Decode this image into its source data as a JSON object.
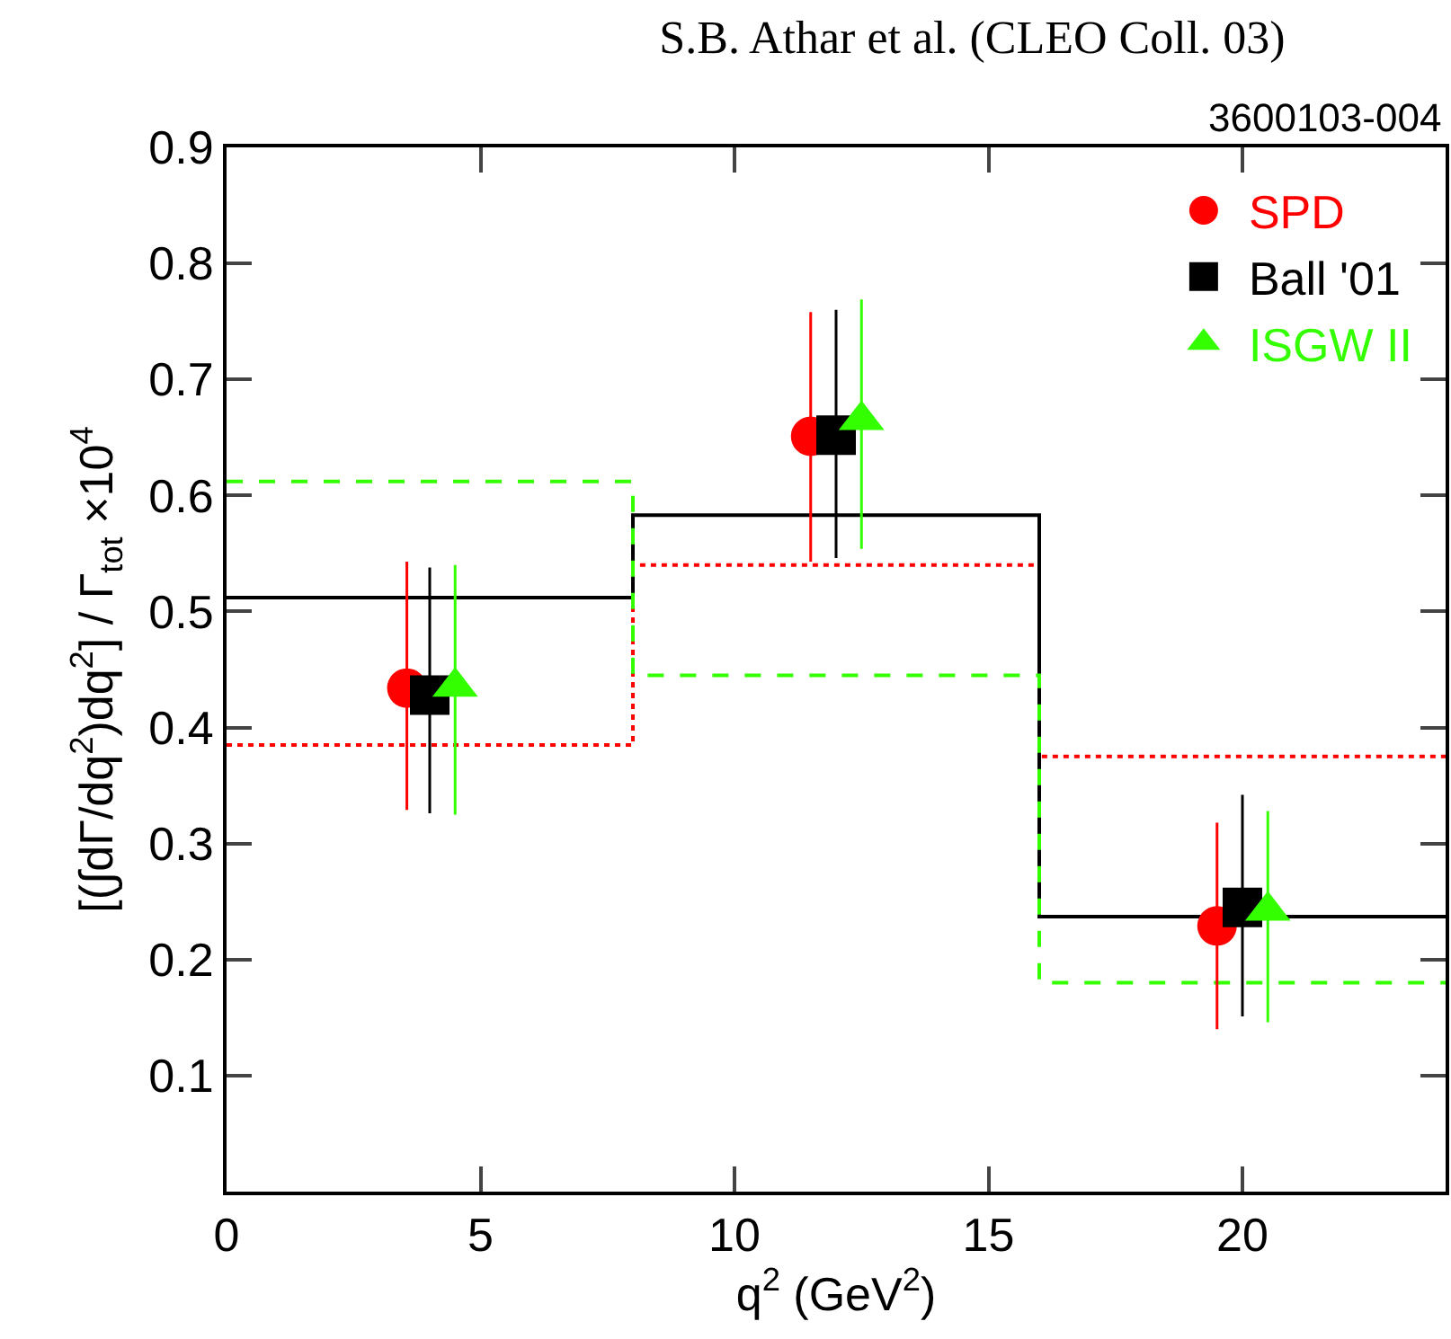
{
  "chart_data": {
    "type": "scatter",
    "title": "S.B. Athar et al. (CLEO Coll. 03)",
    "annotations": [
      "3600103-004"
    ],
    "xlabel": "q$^{2}$ (GeV$^{2}$)",
    "ylabel": "[(∫dΓ/dq$^{2}$)dq$^{2}$] / Γ$_{tot}$ ×10$^{4}$",
    "xlim": [
      0,
      24
    ],
    "xticks": [
      0,
      5,
      10,
      15,
      20
    ],
    "ylim": [
      0,
      0.9
    ],
    "yticks": [
      0.1,
      0.2,
      0.3,
      0.4,
      0.5,
      0.6,
      0.7,
      0.8,
      0.9
    ],
    "grid": false,
    "legend": "top right",
    "series": [
      {
        "name": "SPD",
        "color": "#ff0000",
        "marker": "circle",
        "line_style": "dotted",
        "x": [
          3.55,
          11.5,
          19.5
        ],
        "values": [
          0.434,
          0.651,
          0.229
        ],
        "errors": [
          [
            0.329,
            0.543
          ],
          [
            0.543,
            0.758
          ],
          [
            0.14,
            0.318
          ]
        ]
      },
      {
        "name": "Ball '01",
        "color": "#000000",
        "marker": "square",
        "line_style": "solid",
        "x": [
          4.0,
          12.0,
          20.0
        ],
        "values": [
          0.428,
          0.652,
          0.245
        ],
        "errors": [
          [
            0.326,
            0.538
          ],
          [
            0.546,
            0.76
          ],
          [
            0.151,
            0.342
          ]
        ]
      },
      {
        "name": "ISGW II",
        "color": "#33ff00",
        "marker": "triangle",
        "line_style": "dashed",
        "x": [
          4.5,
          12.5,
          20.5
        ],
        "values": [
          0.435,
          0.665,
          0.242
        ],
        "errors": [
          [
            0.325,
            0.54
          ],
          [
            0.554,
            0.769
          ],
          [
            0.146,
            0.328
          ]
        ]
      },
      {
        "type": "step",
        "color": "#ff0000",
        "line_style": "dotted",
        "x": [
          0,
          8,
          16,
          24
        ],
        "values": [
          0.385,
          0.54,
          0.375,
          0.375
        ]
      },
      {
        "type": "step",
        "color": "#000000",
        "line_style": "solid",
        "x": [
          0,
          8,
          16,
          24
        ],
        "values": [
          0.512,
          0.583,
          0.237,
          0.237
        ]
      },
      {
        "type": "step",
        "color": "#33ff00",
        "line_style": "dashed",
        "x": [
          0,
          8,
          16,
          24
        ],
        "values": [
          0.612,
          0.445,
          0.18,
          0.18
        ]
      }
    ]
  }
}
